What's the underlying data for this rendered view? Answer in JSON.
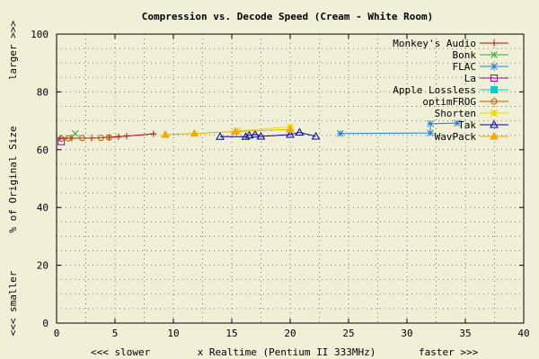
{
  "chart_data": {
    "type": "line",
    "title": "Compression vs. Decode Speed (Cream - White Room)",
    "xlabel": "x Realtime (Pentium II 333MHz)",
    "xlabel_left": "<<< slower",
    "xlabel_right": "faster >>>",
    "ylabel": "% of Original Size",
    "ylabel_top": "larger >>>",
    "ylabel_bottom": "<<< smaller",
    "xlim": [
      0,
      40
    ],
    "ylim": [
      0,
      100
    ],
    "xticks": [
      0,
      5,
      10,
      15,
      20,
      25,
      30,
      35,
      40
    ],
    "yticks": [
      0,
      20,
      40,
      60,
      80,
      100
    ],
    "grid": "dotted",
    "legend_position": "top-right",
    "series": [
      {
        "name": "Monkey's Audio",
        "color": "#cc0000",
        "marker": "plus",
        "points": [
          [
            0.3,
            64.0
          ],
          [
            1.3,
            64.0
          ],
          [
            3.0,
            64.0
          ],
          [
            4.5,
            64.3
          ],
          [
            5.3,
            64.5
          ],
          [
            6.0,
            64.7
          ],
          [
            8.3,
            65.5
          ]
        ]
      },
      {
        "name": "Bonk",
        "color": "#33aa33",
        "marker": "cross",
        "points": [
          [
            1.6,
            65.6
          ]
        ]
      },
      {
        "name": "FLAC",
        "color": "#1f7fd8",
        "marker": "asterisk",
        "points": [
          [
            24.3,
            65.6
          ],
          [
            32.0,
            65.8
          ],
          [
            32.0,
            69.0
          ],
          [
            34.3,
            69.2
          ]
        ]
      },
      {
        "name": "La",
        "color": "#aa00aa",
        "marker": "square-open",
        "points": [
          [
            0.4,
            62.8
          ]
        ]
      },
      {
        "name": "Apple Lossless",
        "color": "#00cccc",
        "marker": "square-filled",
        "points": []
      },
      {
        "name": "optimFROG",
        "color": "#b35c00",
        "marker": "circle-open",
        "points": [
          [
            0.4,
            63.8
          ],
          [
            1.0,
            63.9
          ],
          [
            2.2,
            64.0
          ],
          [
            3.8,
            64.1
          ],
          [
            4.5,
            64.2
          ]
        ]
      },
      {
        "name": "Shorten",
        "color": "#f2d800",
        "marker": "star",
        "points": [
          [
            15.5,
            66.5
          ],
          [
            20.0,
            67.9
          ]
        ]
      },
      {
        "name": "Tak",
        "color": "#000099",
        "marker": "triangle-open",
        "points": [
          [
            14.0,
            64.5
          ],
          [
            16.2,
            64.5
          ],
          [
            16.5,
            65.0
          ],
          [
            17.0,
            65.3
          ],
          [
            17.5,
            64.6
          ],
          [
            20.0,
            65.2
          ],
          [
            20.8,
            66.0
          ],
          [
            22.2,
            64.6
          ]
        ]
      },
      {
        "name": "WavPack",
        "color": "#f2a900",
        "marker": "triangle-filled",
        "points": [
          [
            9.3,
            65.2
          ],
          [
            11.8,
            65.6
          ],
          [
            15.3,
            66.3
          ],
          [
            20.0,
            67.0
          ]
        ]
      }
    ]
  }
}
